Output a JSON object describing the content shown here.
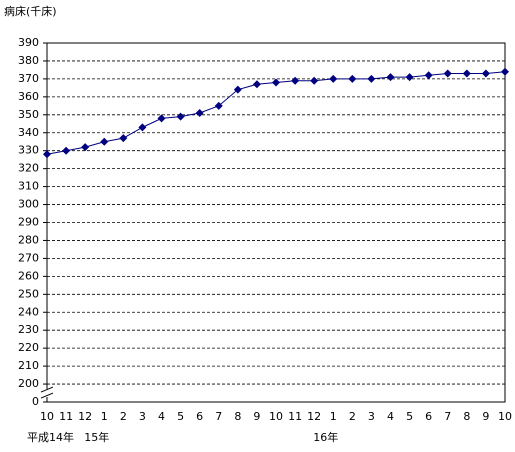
{
  "chart_data": {
    "type": "line",
    "y_label": "病床(千床)",
    "categories": [
      "10",
      "11",
      "12",
      "1",
      "2",
      "3",
      "4",
      "5",
      "6",
      "7",
      "8",
      "9",
      "10",
      "11",
      "12",
      "1",
      "2",
      "3",
      "4",
      "5",
      "6",
      "7",
      "8",
      "9",
      "10"
    ],
    "categories_year": [
      "平成14年",
      null,
      null,
      "15年",
      null,
      null,
      null,
      null,
      null,
      null,
      null,
      null,
      null,
      null,
      null,
      "16年",
      null,
      null,
      null,
      null,
      null,
      null,
      null,
      null,
      null
    ],
    "series": [
      {
        "color": "#000080",
        "values": [
          328,
          330,
          332,
          335,
          337,
          343,
          348,
          349,
          351,
          355,
          364,
          367,
          368,
          369,
          369,
          370,
          370,
          370,
          371,
          371,
          372,
          373,
          373,
          373,
          374
        ]
      }
    ],
    "ylim": [
      0,
      390
    ],
    "yticks": [
      0,
      200,
      210,
      220,
      230,
      240,
      250,
      260,
      270,
      280,
      290,
      300,
      310,
      320,
      330,
      340,
      350,
      360,
      370,
      380,
      390
    ],
    "axis_break": true,
    "grid": true
  }
}
